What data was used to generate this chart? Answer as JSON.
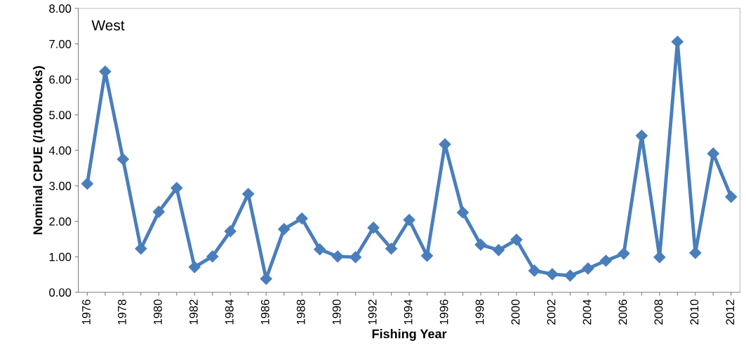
{
  "chart_data": {
    "type": "line",
    "xlabel": "Fishing Year",
    "ylabel": "Nominal CPUE (/1000hooks)",
    "annotations": [
      "West"
    ],
    "categories": [
      "1976",
      null,
      "1978",
      null,
      "1980",
      null,
      "1982",
      null,
      "1984",
      null,
      "1986",
      null,
      "1988",
      null,
      "1990",
      null,
      "1992",
      null,
      "1994",
      null,
      "1996",
      null,
      "1998",
      null,
      "2000",
      null,
      "2002",
      null,
      "2004",
      null,
      "2006",
      null,
      "2008",
      null,
      "2010",
      null,
      "2012"
    ],
    "series": [
      {
        "color": "#4a7ebb",
        "values": [
          3.06,
          6.22,
          3.75,
          1.23,
          2.27,
          2.94,
          0.71,
          1.01,
          1.72,
          2.77,
          0.38,
          1.78,
          2.08,
          1.21,
          1.01,
          0.99,
          1.82,
          1.23,
          2.04,
          1.03,
          4.17,
          2.25,
          1.34,
          1.19,
          1.48,
          0.61,
          0.51,
          0.47,
          0.67,
          0.89,
          1.09,
          4.41,
          0.99,
          7.06,
          1.11,
          3.91,
          2.69
        ]
      }
    ],
    "ylim": [
      0,
      8
    ],
    "yticks": [
      {
        "value": 0,
        "label": "0.00"
      },
      {
        "value": 1,
        "label": "1.00"
      },
      {
        "value": 2,
        "label": "2.00"
      },
      {
        "value": 3,
        "label": "3.00"
      },
      {
        "value": 4,
        "label": "4.00"
      },
      {
        "value": 5,
        "label": "5.00"
      },
      {
        "value": 6,
        "label": "6.00"
      },
      {
        "value": 7,
        "label": "7.00"
      },
      {
        "value": 8,
        "label": "8.00"
      }
    ],
    "grid": false,
    "legend": false,
    "marker": "diamond",
    "line_style": "solid"
  }
}
